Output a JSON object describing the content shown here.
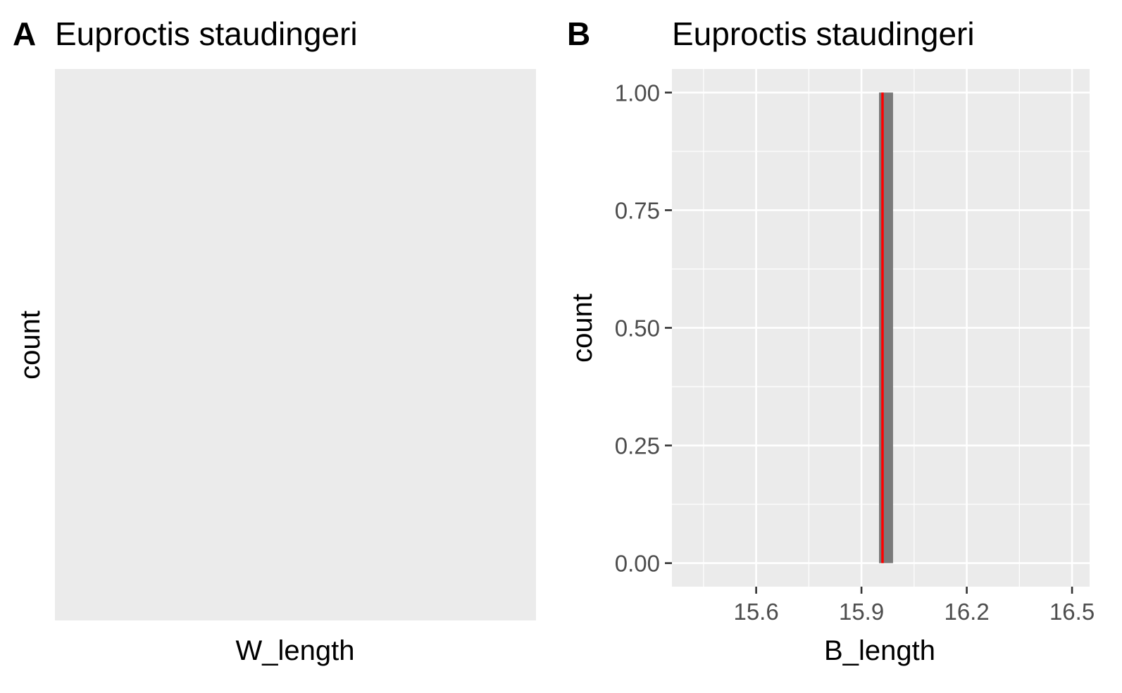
{
  "chart_data": [
    {
      "type": "bar",
      "panel_label": "A",
      "title": "Euproctis staudingeri",
      "xlabel": "W_length",
      "ylabel": "count",
      "x": [],
      "values": [],
      "background": "#ebebeb",
      "grid": false
    },
    {
      "type": "bar",
      "panel_label": "B",
      "title": "Euproctis staudingeri",
      "xlabel": "B_length",
      "ylabel": "count",
      "xlim": [
        15.36,
        16.55
      ],
      "ylim": [
        -0.05,
        1.05
      ],
      "xticks": [
        15.6,
        15.9,
        16.2,
        16.5
      ],
      "xtick_labels": [
        "15.6",
        "15.9",
        "16.2",
        "16.5"
      ],
      "yticks": [
        0,
        0.25,
        0.5,
        0.75,
        1
      ],
      "ytick_labels": [
        "0.00",
        "0.25",
        "0.50",
        "0.75",
        "1.00"
      ],
      "bins": [
        {
          "x0": 15.95,
          "x1": 15.99,
          "count": 1
        }
      ],
      "vline": 15.96,
      "bar_color": "#7a7a7a",
      "vline_color": "#ff0000",
      "background": "#ebebeb",
      "grid": true
    }
  ]
}
